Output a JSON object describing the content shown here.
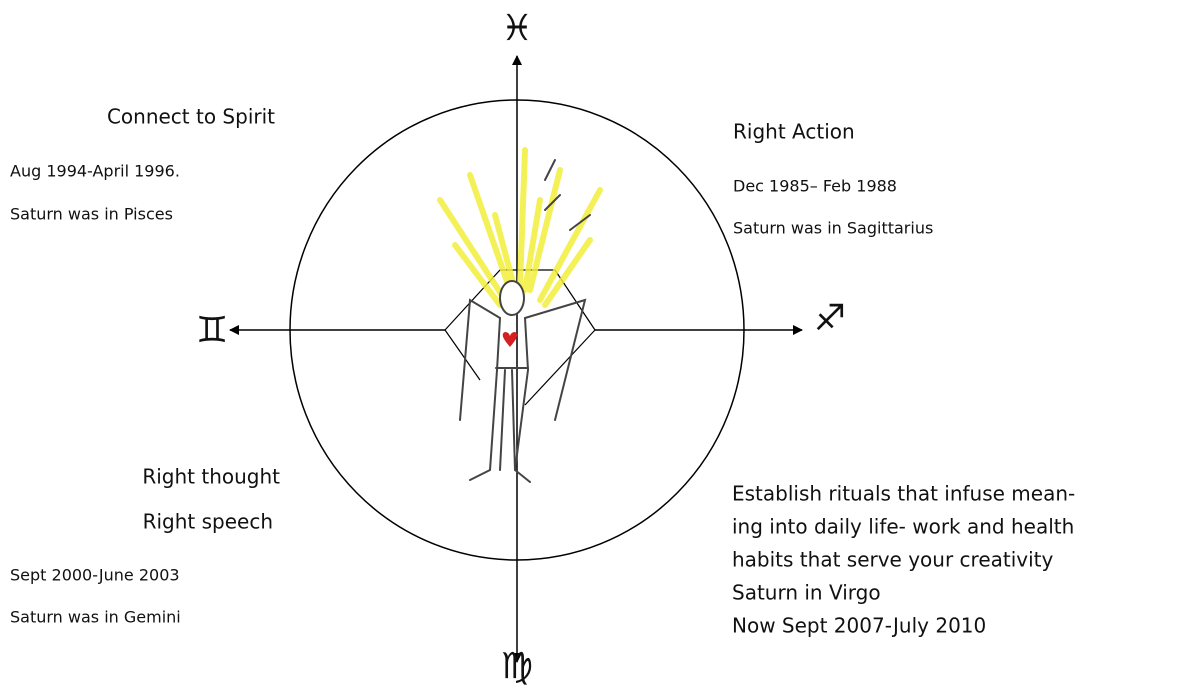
{
  "symbols": {
    "top": "♓",
    "left": "♊",
    "right": "♐",
    "bottom": "♍"
  },
  "quadrants": {
    "top_left": {
      "heading": [
        "Connect to Spirit"
      ],
      "lines": [
        "Aug 1994-April 1996.",
        "Saturn was in Pisces"
      ]
    },
    "top_right": {
      "heading": [
        "Right Action"
      ],
      "lines": [
        "Dec 1985– Feb 1988",
        "Saturn was in Sagittarius"
      ]
    },
    "bottom_left": {
      "heading": [
        "Right thought",
        "Right speech"
      ],
      "lines": [
        "Sept 2000-June 2003",
        "Saturn was in Gemini"
      ]
    },
    "bottom_right": {
      "lines": [
        "Establish rituals that infuse mean-",
        "ing into daily life- work and health",
        "habits that serve your creativity",
        "Saturn in Virgo",
        "Now Sept 2007-July 2010"
      ]
    }
  }
}
